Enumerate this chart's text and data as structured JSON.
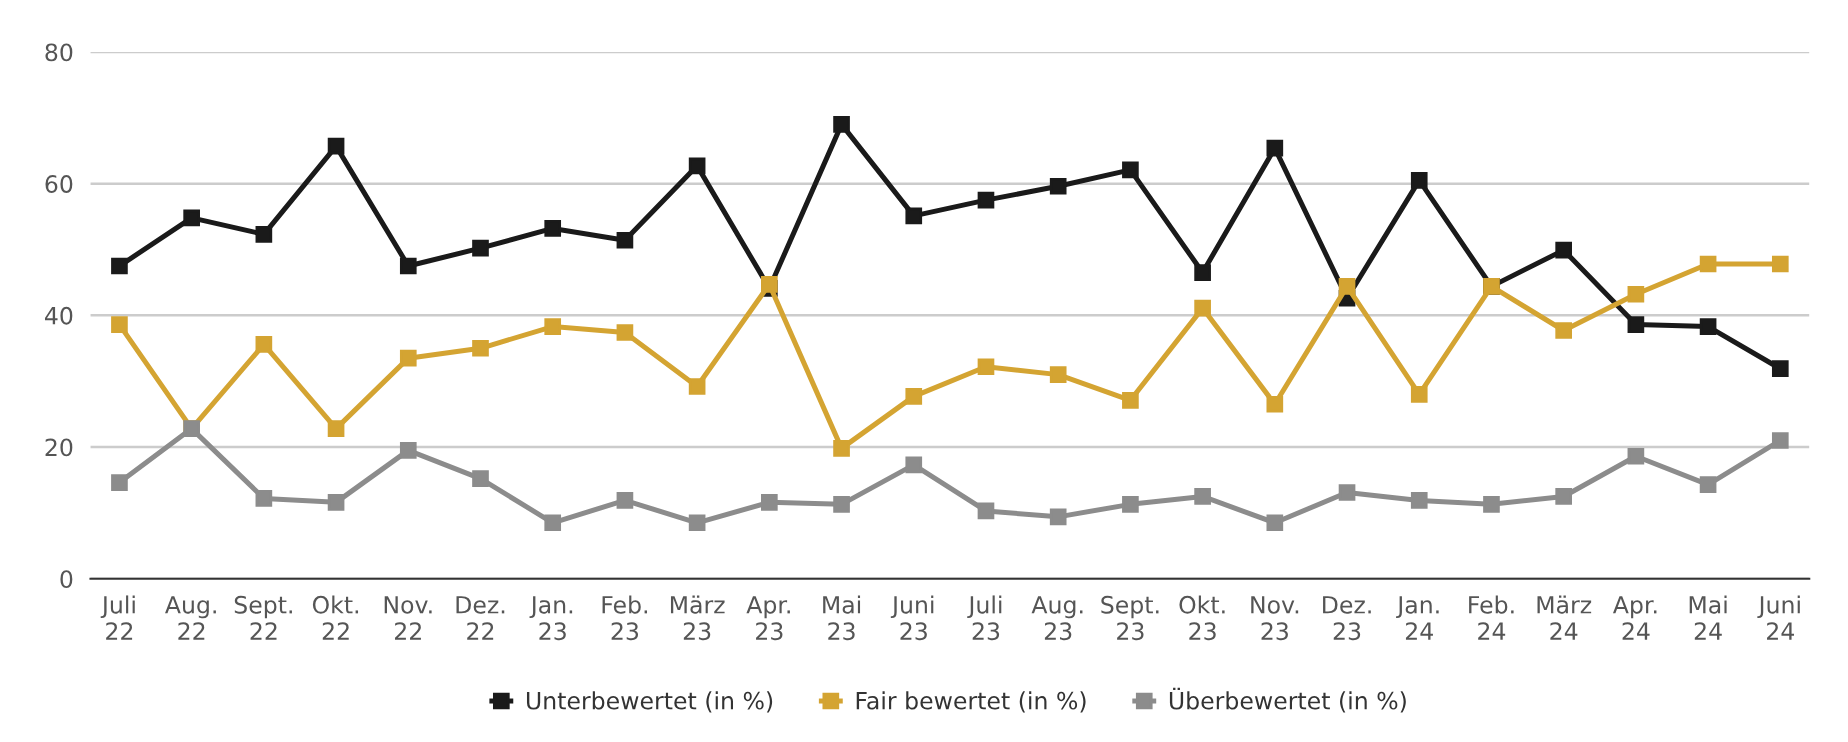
{
  "chart_data": {
    "type": "line",
    "categories": [
      "Juli\n22",
      "Aug.\n22",
      "Sept.\n22",
      "Okt.\n22",
      "Nov.\n22",
      "Dez.\n22",
      "Jan.\n23",
      "Feb.\n23",
      "März\n23",
      "Apr.\n23",
      "Mai\n23",
      "Juni\n23",
      "Juli\n23",
      "Aug.\n23",
      "Sept.\n23",
      "Okt.\n23",
      "Nov.\n23",
      "Dez.\n23",
      "Jan.\n24",
      "Feb.\n24",
      "März\n24",
      "Apr.\n24",
      "Mai\n24",
      "Juni\n24"
    ],
    "series": [
      {
        "name": "Unterbewertet (in %)",
        "color": "#1a1a1a",
        "values": [
          47.5,
          54.8,
          52.3,
          65.7,
          47.5,
          50.2,
          53.2,
          51.4,
          62.7,
          44.1,
          69.0,
          55.1,
          57.5,
          59.6,
          62.1,
          46.5,
          65.4,
          42.6,
          60.5,
          44.4,
          49.9,
          38.6,
          38.3,
          31.9
        ]
      },
      {
        "name": "Fair bewertet (in %)",
        "color": "#d4a432",
        "values": [
          38.6,
          22.8,
          35.6,
          22.8,
          33.5,
          35.0,
          38.3,
          37.4,
          29.2,
          44.7,
          19.8,
          27.7,
          32.2,
          31.0,
          27.1,
          41.1,
          26.5,
          44.4,
          28.0,
          44.4,
          37.7,
          43.2,
          47.8,
          47.8
        ]
      },
      {
        "name": "Überbewertet (in %)",
        "color": "#8c8c8c",
        "values": [
          14.6,
          22.8,
          12.2,
          11.6,
          19.5,
          15.2,
          8.5,
          11.9,
          8.5,
          11.6,
          11.3,
          17.3,
          10.3,
          9.4,
          11.3,
          12.5,
          8.5,
          13.1,
          11.9,
          11.3,
          12.5,
          18.6,
          14.3,
          21.0
        ]
      }
    ],
    "ylim": [
      0,
      80
    ],
    "yticks": [
      0,
      20,
      40,
      60,
      80
    ],
    "grid": "y",
    "legend": "bottom",
    "marker": "square",
    "line_style": "solid"
  }
}
